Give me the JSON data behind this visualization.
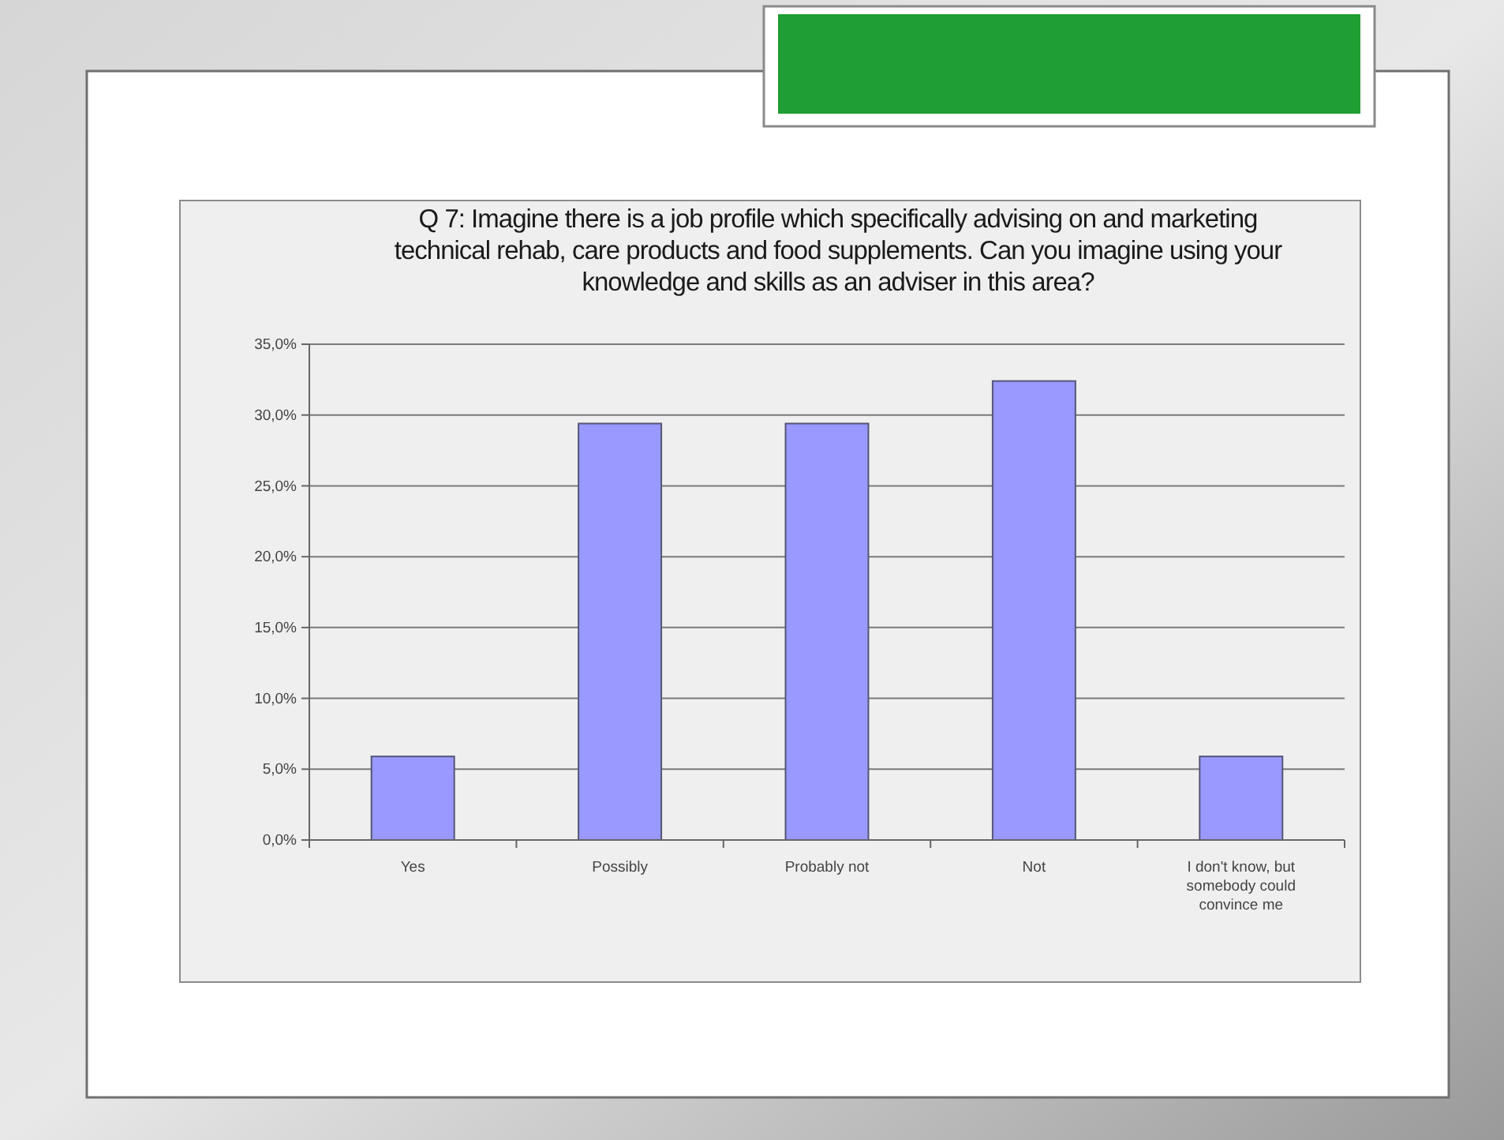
{
  "chart_data": {
    "type": "bar",
    "title": "Q 7: Imagine there is a job profile which specifically advising on and marketing technical rehab, care products and food supplements. Can you imagine using your knowledge and skills as an adviser in this area?",
    "categories": [
      "Yes",
      "Possibly",
      "Probably not",
      "Not",
      "I don't know, but somebody could convince me"
    ],
    "values": [
      5.9,
      29.4,
      29.4,
      32.4,
      5.9
    ],
    "color": "#9999ff",
    "ylim": [
      0,
      35
    ],
    "yticks": [
      {
        "value": 0,
        "label": "0,0%"
      },
      {
        "value": 5,
        "label": "5,0%"
      },
      {
        "value": 10,
        "label": "10,0%"
      },
      {
        "value": 15,
        "label": "15,0%"
      },
      {
        "value": 20,
        "label": "20,0%"
      },
      {
        "value": 25,
        "label": "25,0%"
      },
      {
        "value": 30,
        "label": "30,0%"
      },
      {
        "value": 35,
        "label": "35,0%"
      }
    ],
    "grid": "y",
    "legend": false
  }
}
